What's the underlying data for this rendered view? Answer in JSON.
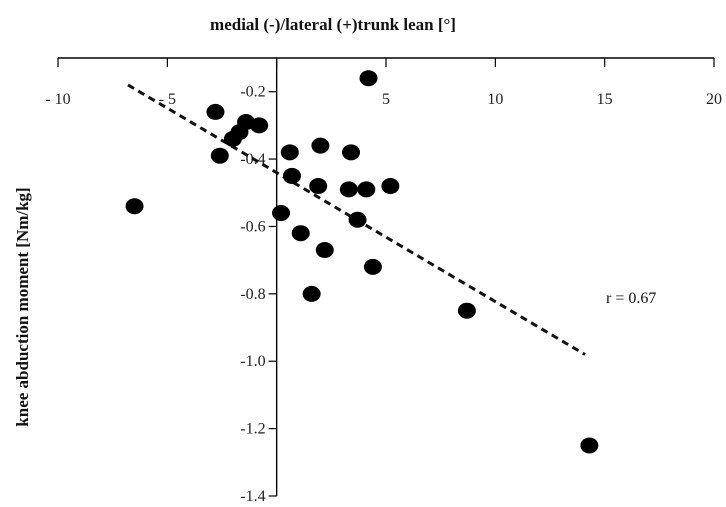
{
  "chart_data": {
    "type": "scatter",
    "title": "medial (-)/lateral (+)trunk lean [°]",
    "xlabel": "",
    "ylabel": "knee abduction moment [Nm/kg]",
    "xlim": [
      -10,
      20
    ],
    "ylim": [
      -1.4,
      -0.1
    ],
    "x_axis_position": "top",
    "x_ticks": [
      -10,
      -5,
      0,
      5,
      10,
      15,
      20
    ],
    "x_tick_labels": [
      "- 10",
      "- 5",
      "",
      "5",
      "10",
      "15",
      "20"
    ],
    "y_ticks": [
      -0.2,
      -0.4,
      -0.6,
      -0.8,
      -1.0,
      -1.2,
      -1.4
    ],
    "y_tick_labels": [
      "-0.2",
      "-0.4",
      "-0.6",
      "-0.8",
      "-1.0",
      "-1.2",
      "-1.4"
    ],
    "grid": false,
    "annotation": "r = 0.67",
    "points": [
      {
        "x": -6.5,
        "y": -0.54
      },
      {
        "x": -2.8,
        "y": -0.26
      },
      {
        "x": -2.6,
        "y": -0.39
      },
      {
        "x": -2.0,
        "y": -0.34
      },
      {
        "x": -1.7,
        "y": -0.32
      },
      {
        "x": -1.4,
        "y": -0.29
      },
      {
        "x": -0.8,
        "y": -0.3
      },
      {
        "x": 0.2,
        "y": -0.56
      },
      {
        "x": 0.6,
        "y": -0.38
      },
      {
        "x": 0.7,
        "y": -0.45
      },
      {
        "x": 1.1,
        "y": -0.62
      },
      {
        "x": 1.9,
        "y": -0.48
      },
      {
        "x": 2.0,
        "y": -0.36
      },
      {
        "x": 2.2,
        "y": -0.67
      },
      {
        "x": 1.6,
        "y": -0.8
      },
      {
        "x": 3.3,
        "y": -0.49
      },
      {
        "x": 3.4,
        "y": -0.38
      },
      {
        "x": 3.7,
        "y": -0.58
      },
      {
        "x": 4.1,
        "y": -0.49
      },
      {
        "x": 4.2,
        "y": -0.16
      },
      {
        "x": 4.4,
        "y": -0.72
      },
      {
        "x": 5.2,
        "y": -0.48
      },
      {
        "x": 8.7,
        "y": -0.85
      },
      {
        "x": 14.3,
        "y": -1.25
      }
    ],
    "trendline": {
      "x1": -6.8,
      "y1": -0.18,
      "x2": 14.1,
      "y2": -0.98
    }
  }
}
